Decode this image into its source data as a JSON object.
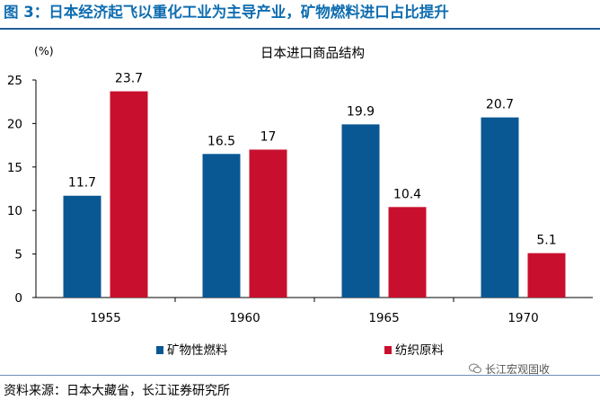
{
  "figure": {
    "title": "图 3：日本经济起飞以重化工业为主导产业，矿物燃料进口占比提升",
    "source": "资料来源：日本大藏省，长江证券研究所",
    "watermark": "长江宏观固收"
  },
  "chart_data": {
    "type": "bar",
    "title": "日本进口商品结构",
    "ylabel": "(%)",
    "xlabel": "",
    "categories": [
      "1955",
      "1960",
      "1965",
      "1970"
    ],
    "series": [
      {
        "name": "矿物性燃料",
        "values": [
          11.7,
          16.5,
          19.9,
          20.7
        ],
        "labels": [
          "11.7",
          "16.5",
          "19.9",
          "20.7"
        ],
        "color": "#0a5893"
      },
      {
        "name": "纺织原料",
        "values": [
          23.7,
          17,
          10.4,
          5.1
        ],
        "labels": [
          "23.7",
          "17",
          "10.4",
          "5.1"
        ],
        "color": "#c8102e"
      }
    ],
    "ylim": [
      0,
      25
    ],
    "yticks": [
      "0",
      "5",
      "10",
      "15",
      "20",
      "25"
    ],
    "grid": false,
    "legend": "bottom"
  }
}
